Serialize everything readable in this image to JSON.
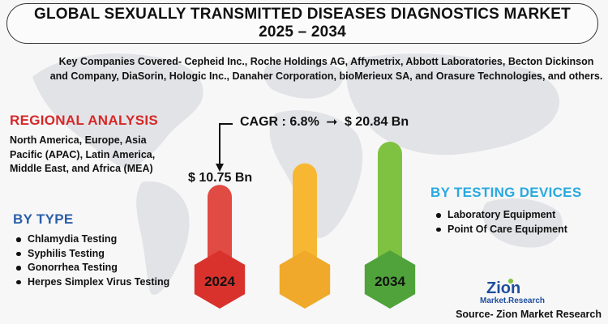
{
  "title": {
    "line1": "GLOBAL SEXUALLY TRANSMITTED DISEASES DIAGNOSTICS MARKET",
    "line2": "2025 – 2034"
  },
  "companies_text": "Key Companies Covered- Cepheid Inc., Roche Holdings AG, Affymetrix, Abbott Laboratories, Becton Dickinson and Company, DiaSorin, Hologic Inc., Danaher Corporation, bioMerieux SA, and Orasure Technologies, and others.",
  "regional": {
    "heading": "REGIONAL ANALYSIS",
    "text": "North America, Europe, Asia Pacific (APAC), Latin America, Middle East, and Africa (MEA)"
  },
  "by_type": {
    "heading": "BY TYPE",
    "items": [
      "Chlamydia Testing",
      "Syphilis Testing",
      "Gonorrhea Testing",
      "Herpes Simplex Virus Testing"
    ]
  },
  "by_devices": {
    "heading": "BY TESTING DEVICES",
    "items": [
      "Laboratory Equipment",
      "Point Of Care Equipment"
    ]
  },
  "cagr": {
    "label": "CAGR : 6.8%",
    "end_value": "$ 20.84 Bn",
    "start_value": "$ 10.75 Bn"
  },
  "chart_data": {
    "type": "bar",
    "categories": [
      "2024",
      "",
      "2034"
    ],
    "values": [
      10.75,
      null,
      20.84
    ],
    "colors": [
      "#e04b44",
      "#f7b733",
      "#7fc241"
    ],
    "hex_colors": [
      "#d9322c",
      "#f0a92a",
      "#4fa33a"
    ]
  },
  "logo": {
    "word1": "Zion",
    "word2": "Market.Research"
  },
  "source": "Source- Zion Market Research",
  "colors": {
    "regional_heading": "#d62828",
    "type_heading": "#2b5fa8",
    "devices_heading": "#29a9df"
  }
}
